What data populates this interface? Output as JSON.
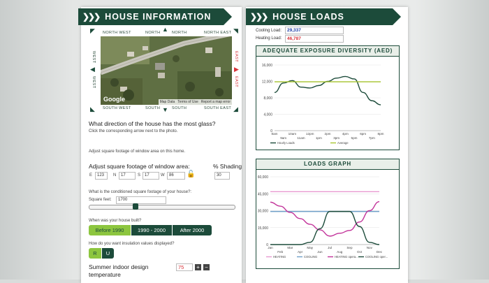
{
  "house_info": {
    "title": "HOUSE INFORMATION",
    "directions": {
      "nw": "NORTH WEST",
      "n": "NORTH",
      "ne": "NORTH EAST",
      "w": "WEST",
      "e": "EAST",
      "sw": "SOUTH WEST",
      "s": "SOUTH",
      "se": "SOUTH EAST"
    },
    "map": {
      "logo": "Google",
      "links": [
        "Map Data",
        "Terms of Use",
        "Report a map error"
      ]
    },
    "glass_question": "What direction of the house has the most glass?",
    "glass_hint": "Click the corresponding arrow next to the photo.",
    "adjust_hint": "Adjust square footage of window area on this home.",
    "window_heading": "Adjust square footage of window area:",
    "shading_heading": "% Shading",
    "windows": [
      {
        "label": "E",
        "value": "123"
      },
      {
        "label": "N",
        "value": "17"
      },
      {
        "label": "S",
        "value": "17"
      },
      {
        "label": "W",
        "value": "86"
      }
    ],
    "shading_value": "30",
    "sqft_question": "What is the conditioned square footage of your house?:",
    "sqft_label": "Square feet:",
    "sqft_value": "1700",
    "sqft_slider_fraction": 0.32,
    "built_question": "When was your house built?",
    "built_options": [
      "Before 1990",
      "1990 - 2000",
      "After 2000"
    ],
    "built_selected": 0,
    "insulation_question": "How do you want insulation values displayed?",
    "insulation_options": [
      "R",
      "U"
    ],
    "insulation_selected": 0,
    "temp_label_1": "Summer indoor design",
    "temp_label_2": "temperature",
    "temp_value": "75",
    "plus": "+",
    "minus": "−"
  },
  "house_loads": {
    "title": "HOUSE LOADS",
    "cooling_label": "Cooling Load:",
    "cooling_value": "29,337",
    "heating_label": "Heating Load:",
    "heating_value": "46,787",
    "accent_cooling": "#1f3fa8",
    "accent_heating": "#d8333a"
  },
  "chart_data": [
    {
      "type": "line",
      "title": "ADEQUATE EXPOSURE DIVERSITY (AED)",
      "categories": [
        "8am",
        "9am",
        "10am",
        "11am",
        "12pm",
        "1pm",
        "2pm",
        "3pm",
        "4pm",
        "5pm",
        "6pm",
        "7pm",
        "8pm"
      ],
      "ylim": [
        0,
        16000
      ],
      "yticks": [
        "0",
        "4,000",
        "8,000",
        "12,000",
        "16,000"
      ],
      "series": [
        {
          "name": "Hourly Loads",
          "color": "#1c4b3a",
          "values": [
            9300,
            11600,
            12200,
            10600,
            10400,
            11000,
            12000,
            12800,
            13200,
            12600,
            9300,
            7300,
            6300
          ]
        },
        {
          "name": "Average",
          "color": "#a8c62f",
          "values": [
            11900,
            11900,
            11900,
            11900,
            11900,
            11900,
            11900,
            11900,
            11900,
            11900,
            11900,
            11900,
            11900
          ]
        }
      ],
      "legend": "bottom"
    },
    {
      "type": "line",
      "title": "LOADS GRAPH",
      "categories": [
        "Jan",
        "Feb",
        "Mar",
        "Apr",
        "May",
        "Jun",
        "Jul",
        "Aug",
        "Sep",
        "Oct",
        "Nov",
        "Dec"
      ],
      "ylim": [
        0,
        60000
      ],
      "yticks": [
        "0",
        "15,000",
        "30,000",
        "45,000",
        "60,000"
      ],
      "series": [
        {
          "name": "HEATING",
          "color": "#e89ad0",
          "values": [
            46800,
            46800,
            46800,
            46800,
            46800,
            46800,
            46800,
            46800,
            46800,
            46800,
            46800,
            46800
          ]
        },
        {
          "name": "COOLING",
          "color": "#6fa0c9",
          "values": [
            29300,
            29300,
            29300,
            29300,
            29300,
            29300,
            29300,
            29300,
            29300,
            29300,
            29300,
            29300
          ]
        },
        {
          "name": "HEATING opera...",
          "color": "#c2339a",
          "values": [
            37500,
            34000,
            28500,
            23000,
            18000,
            13000,
            7500,
            10000,
            12500,
            20000,
            30000,
            38000
          ]
        },
        {
          "name": "COOLING oper...",
          "color": "#1c4b3a",
          "values": [
            0,
            0,
            0,
            0,
            2000,
            14000,
            29300,
            29300,
            29300,
            16000,
            2000,
            0
          ]
        }
      ],
      "legend": "bottom"
    }
  ]
}
